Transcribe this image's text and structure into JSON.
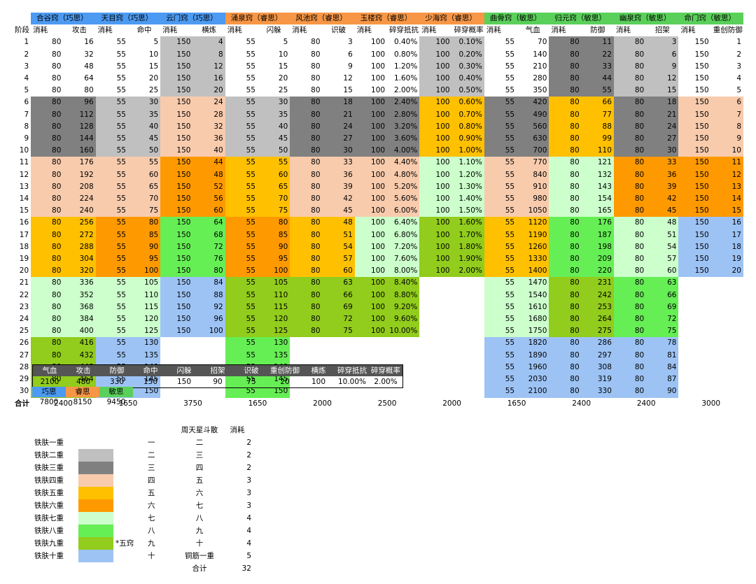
{
  "colors": {
    "blue": "#4c9af1",
    "orange": "#f79646",
    "green": "#5ad05a",
    "t2": "#c0c0c0",
    "t3": "#808080",
    "t4": "#f8cbad",
    "t5": "#ffc000",
    "t6": "#ff9900",
    "t7": "#ccffcc",
    "t8": "#66ee55",
    "t9": "#92cc1c",
    "t10": "#9dc3f5"
  },
  "groups": [
    {
      "name": "合谷窍（巧思）",
      "color": "blue"
    },
    {
      "name": "天目窍（巧思）",
      "color": "blue"
    },
    {
      "name": "云门窍（巧思）",
      "color": "blue"
    },
    {
      "name": "涌泉窍（睿思）",
      "color": "orange"
    },
    {
      "name": "风池窍（睿思）",
      "color": "orange"
    },
    {
      "name": "玉楼窍（睿思）",
      "color": "orange"
    },
    {
      "name": "少海窍（睿思）",
      "color": "orange"
    },
    {
      "name": "曲骨窍（敏思）",
      "color": "green"
    },
    {
      "name": "归元窍（敏思）",
      "color": "green"
    },
    {
      "name": "幽泉窍（敏思）",
      "color": "green"
    },
    {
      "name": "命门窍（敏思）",
      "color": "green"
    }
  ],
  "stage_label": "阶段",
  "sub_headers": [
    [
      "消耗",
      "攻击"
    ],
    [
      "消耗",
      "命中"
    ],
    [
      "消耗",
      "横炼"
    ],
    [
      "消耗",
      "闪躲"
    ],
    [
      "消耗",
      "识破"
    ],
    [
      "消耗",
      "碎穿抵抗"
    ],
    [
      "消耗",
      "碎穿概率"
    ],
    [
      "消耗",
      "气血"
    ],
    [
      "消耗",
      "防御"
    ],
    [
      "消耗",
      "招架"
    ],
    [
      "消耗",
      "重创防御"
    ]
  ],
  "rows": [
    [
      "1",
      "80",
      "16",
      "55",
      "5",
      "150",
      "4",
      "55",
      "5",
      "80",
      "3",
      "100",
      "0.40%",
      "100",
      "0.10%",
      "55",
      "70",
      "80",
      "11",
      "80",
      "3",
      "150",
      "1"
    ],
    [
      "2",
      "80",
      "32",
      "55",
      "10",
      "150",
      "8",
      "55",
      "10",
      "80",
      "6",
      "100",
      "0.80%",
      "100",
      "0.20%",
      "55",
      "140",
      "80",
      "22",
      "80",
      "6",
      "150",
      "2"
    ],
    [
      "3",
      "80",
      "48",
      "55",
      "15",
      "150",
      "12",
      "55",
      "15",
      "80",
      "9",
      "100",
      "1.20%",
      "100",
      "0.30%",
      "55",
      "210",
      "80",
      "33",
      "80",
      "9",
      "150",
      "3"
    ],
    [
      "4",
      "80",
      "64",
      "55",
      "20",
      "150",
      "16",
      "55",
      "20",
      "80",
      "12",
      "100",
      "1.60%",
      "100",
      "0.40%",
      "55",
      "280",
      "80",
      "44",
      "80",
      "12",
      "150",
      "4"
    ],
    [
      "5",
      "80",
      "80",
      "55",
      "25",
      "150",
      "20",
      "55",
      "25",
      "80",
      "15",
      "100",
      "2.00%",
      "100",
      "0.50%",
      "55",
      "350",
      "80",
      "55",
      "80",
      "15",
      "150",
      "5"
    ],
    [
      "6",
      "80",
      "96",
      "55",
      "30",
      "150",
      "24",
      "55",
      "30",
      "80",
      "18",
      "100",
      "2.40%",
      "100",
      "0.60%",
      "55",
      "420",
      "80",
      "66",
      "80",
      "18",
      "150",
      "6"
    ],
    [
      "7",
      "80",
      "112",
      "55",
      "35",
      "150",
      "28",
      "55",
      "35",
      "80",
      "21",
      "100",
      "2.80%",
      "100",
      "0.70%",
      "55",
      "490",
      "80",
      "77",
      "80",
      "21",
      "150",
      "7"
    ],
    [
      "8",
      "80",
      "128",
      "55",
      "40",
      "150",
      "32",
      "55",
      "40",
      "80",
      "24",
      "100",
      "3.20%",
      "100",
      "0.80%",
      "55",
      "560",
      "80",
      "88",
      "80",
      "24",
      "150",
      "8"
    ],
    [
      "9",
      "80",
      "144",
      "55",
      "45",
      "150",
      "36",
      "55",
      "45",
      "80",
      "27",
      "100",
      "3.60%",
      "100",
      "0.90%",
      "55",
      "630",
      "80",
      "99",
      "80",
      "27",
      "150",
      "9"
    ],
    [
      "10",
      "80",
      "160",
      "55",
      "50",
      "150",
      "40",
      "55",
      "50",
      "80",
      "30",
      "100",
      "4.00%",
      "100",
      "1.00%",
      "55",
      "700",
      "80",
      "110",
      "80",
      "30",
      "150",
      "10"
    ],
    [
      "11",
      "80",
      "176",
      "55",
      "55",
      "150",
      "44",
      "55",
      "55",
      "80",
      "33",
      "100",
      "4.40%",
      "100",
      "1.10%",
      "55",
      "770",
      "80",
      "121",
      "80",
      "33",
      "150",
      "11"
    ],
    [
      "12",
      "80",
      "192",
      "55",
      "60",
      "150",
      "48",
      "55",
      "60",
      "80",
      "36",
      "100",
      "4.80%",
      "100",
      "1.20%",
      "55",
      "840",
      "80",
      "132",
      "80",
      "36",
      "150",
      "12"
    ],
    [
      "13",
      "80",
      "208",
      "55",
      "65",
      "150",
      "52",
      "55",
      "65",
      "80",
      "39",
      "100",
      "5.20%",
      "100",
      "1.30%",
      "55",
      "910",
      "80",
      "143",
      "80",
      "39",
      "150",
      "13"
    ],
    [
      "14",
      "80",
      "224",
      "55",
      "70",
      "150",
      "56",
      "55",
      "70",
      "80",
      "42",
      "100",
      "5.60%",
      "100",
      "1.40%",
      "55",
      "980",
      "80",
      "154",
      "80",
      "42",
      "150",
      "14"
    ],
    [
      "15",
      "80",
      "240",
      "55",
      "75",
      "150",
      "60",
      "55",
      "75",
      "80",
      "45",
      "100",
      "6.00%",
      "100",
      "1.50%",
      "55",
      "1050",
      "80",
      "165",
      "80",
      "45",
      "150",
      "15"
    ],
    [
      "16",
      "80",
      "256",
      "55",
      "80",
      "150",
      "64",
      "55",
      "80",
      "80",
      "48",
      "100",
      "6.40%",
      "100",
      "1.60%",
      "55",
      "1120",
      "80",
      "176",
      "80",
      "48",
      "150",
      "16"
    ],
    [
      "17",
      "80",
      "272",
      "55",
      "85",
      "150",
      "68",
      "55",
      "85",
      "80",
      "51",
      "100",
      "6.80%",
      "100",
      "1.70%",
      "55",
      "1190",
      "80",
      "187",
      "80",
      "51",
      "150",
      "17"
    ],
    [
      "18",
      "80",
      "288",
      "55",
      "90",
      "150",
      "72",
      "55",
      "90",
      "80",
      "54",
      "100",
      "7.20%",
      "100",
      "1.80%",
      "55",
      "1260",
      "80",
      "198",
      "80",
      "54",
      "150",
      "18"
    ],
    [
      "19",
      "80",
      "304",
      "55",
      "95",
      "150",
      "76",
      "55",
      "95",
      "80",
      "57",
      "100",
      "7.60%",
      "100",
      "1.90%",
      "55",
      "1330",
      "80",
      "209",
      "80",
      "57",
      "150",
      "19"
    ],
    [
      "20",
      "80",
      "320",
      "55",
      "100",
      "150",
      "80",
      "55",
      "100",
      "80",
      "60",
      "100",
      "8.00%",
      "100",
      "2.00%",
      "55",
      "1400",
      "80",
      "220",
      "80",
      "60",
      "150",
      "20"
    ],
    [
      "21",
      "80",
      "336",
      "55",
      "105",
      "150",
      "84",
      "55",
      "105",
      "80",
      "63",
      "100",
      "8.40%",
      "",
      "",
      "55",
      "1470",
      "80",
      "231",
      "80",
      "63",
      "",
      ""
    ],
    [
      "22",
      "80",
      "352",
      "55",
      "110",
      "150",
      "88",
      "55",
      "110",
      "80",
      "66",
      "100",
      "8.80%",
      "",
      "",
      "55",
      "1540",
      "80",
      "242",
      "80",
      "66",
      "",
      ""
    ],
    [
      "23",
      "80",
      "368",
      "55",
      "115",
      "150",
      "92",
      "55",
      "115",
      "80",
      "69",
      "100",
      "9.20%",
      "",
      "",
      "55",
      "1610",
      "80",
      "253",
      "80",
      "69",
      "",
      ""
    ],
    [
      "24",
      "80",
      "384",
      "55",
      "120",
      "150",
      "96",
      "55",
      "120",
      "80",
      "72",
      "100",
      "9.60%",
      "",
      "",
      "55",
      "1680",
      "80",
      "264",
      "80",
      "72",
      "",
      ""
    ],
    [
      "25",
      "80",
      "400",
      "55",
      "125",
      "150",
      "100",
      "55",
      "125",
      "80",
      "75",
      "100",
      "10.00%",
      "",
      "",
      "55",
      "1750",
      "80",
      "275",
      "80",
      "75",
      "",
      ""
    ],
    [
      "26",
      "80",
      "416",
      "55",
      "130",
      "",
      "",
      "55",
      "130",
      "",
      "",
      "",
      "",
      "",
      "",
      "55",
      "1820",
      "80",
      "286",
      "80",
      "78",
      "",
      ""
    ],
    [
      "27",
      "80",
      "432",
      "55",
      "135",
      "",
      "",
      "55",
      "135",
      "",
      "",
      "",
      "",
      "",
      "",
      "55",
      "1890",
      "80",
      "297",
      "80",
      "81",
      "",
      ""
    ],
    [
      "28",
      "80",
      "448",
      "55",
      "140",
      "",
      "",
      "55",
      "140",
      "",
      "",
      "",
      "",
      "",
      "",
      "55",
      "1960",
      "80",
      "308",
      "80",
      "84",
      "",
      ""
    ],
    [
      "29",
      "80",
      "464",
      "55",
      "145",
      "",
      "",
      "55",
      "145",
      "",
      "",
      "",
      "",
      "",
      "",
      "55",
      "2030",
      "80",
      "319",
      "80",
      "87",
      "",
      ""
    ],
    [
      "30",
      "80",
      "480",
      "55",
      "150",
      "",
      "",
      "55",
      "150",
      "",
      "",
      "",
      "",
      "",
      "",
      "55",
      "2100",
      "80",
      "330",
      "80",
      "90",
      "",
      ""
    ]
  ],
  "sum_label": "合计",
  "sums": [
    "2400",
    "1650",
    "3750",
    "1650",
    "2000",
    "2500",
    "2000",
    "1650",
    "2400",
    "2400",
    "3000"
  ],
  "stats": {
    "headers": [
      "气血",
      "攻击",
      "防御",
      "命中",
      "闪躲",
      "招架",
      "识破",
      "重创防御",
      "横炼",
      "碎穿抵抗",
      "碎穿概率"
    ],
    "values": [
      "2100",
      "480",
      "330",
      "150",
      "150",
      "90",
      "75",
      "20",
      "100",
      "10.00%",
      "2.00%"
    ]
  },
  "totals": {
    "headers": [
      "巧思",
      "睿思",
      "敏思"
    ],
    "values": [
      "7800",
      "8150",
      "9450"
    ]
  },
  "legend": {
    "tiers": [
      "铁肤一重",
      "铁肤二重",
      "铁肤三重",
      "铁肤四重",
      "铁肤五重",
      "铁肤六重",
      "铁肤七重",
      "铁肤八重",
      "铁肤九重",
      "铁肤十重"
    ],
    "note": "*五窍",
    "title": "周天星斗散",
    "cost_header": "消耗",
    "from": [
      "一",
      "二",
      "三",
      "四",
      "五",
      "六",
      "七",
      "八",
      "九",
      "十"
    ],
    "to": [
      "二",
      "三",
      "四",
      "五",
      "六",
      "七",
      "八",
      "九",
      "十",
      "铜筋一重"
    ],
    "costs": [
      "2",
      "2",
      "2",
      "3",
      "3",
      "3",
      "4",
      "4",
      "4",
      "5"
    ],
    "total_label": "合计",
    "total": "32"
  }
}
